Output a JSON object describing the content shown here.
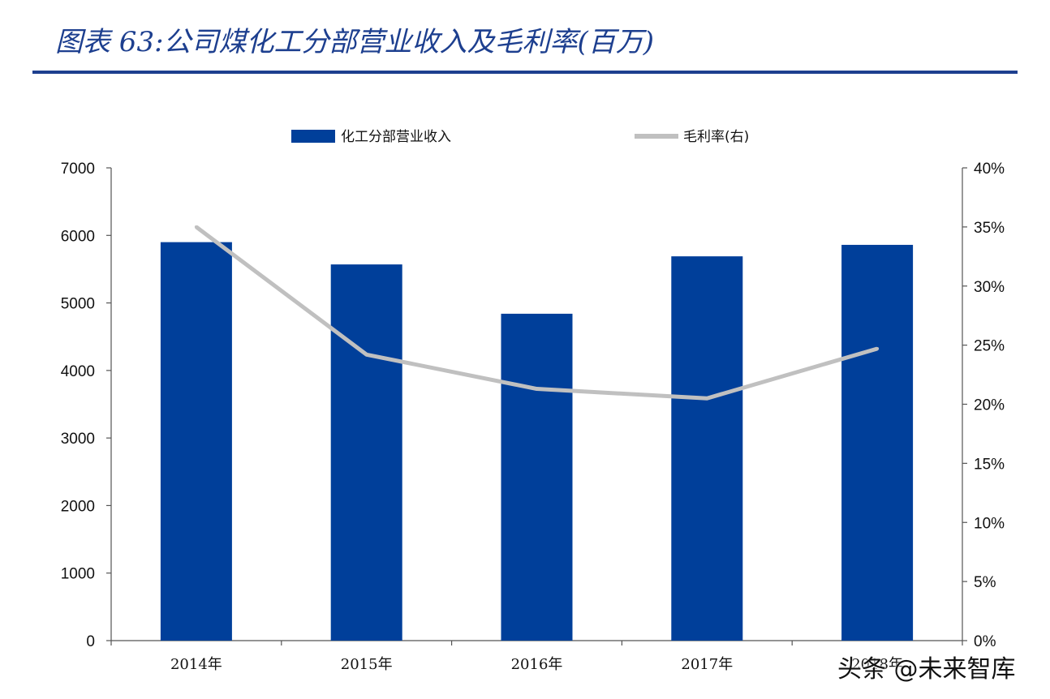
{
  "header": {
    "title": "图表 63:公司煤化工分部营业收入及毛利率(百万)"
  },
  "watermark": "头条 @未来智库",
  "colors": {
    "bar": "#003f9a",
    "line": "#c0c0c0",
    "title": "#1d3f8f"
  },
  "chart_data": {
    "type": "bar",
    "categories": [
      "2014年",
      "2015年",
      "2016年",
      "2017年",
      "2018年"
    ],
    "series": [
      {
        "name": "化工分部营业收入",
        "type": "bar",
        "axis": "left",
        "values": [
          5900,
          5570,
          4840,
          5690,
          5860
        ]
      },
      {
        "name": "毛利率(右)",
        "type": "line",
        "axis": "right",
        "values": [
          0.35,
          0.242,
          0.213,
          0.205,
          0.247
        ]
      }
    ],
    "y_left": {
      "ylim": [
        0,
        7000
      ],
      "ticks": [
        "0",
        "1000",
        "2000",
        "3000",
        "4000",
        "5000",
        "6000",
        "7000"
      ]
    },
    "y_right": {
      "ylim": [
        0,
        0.4
      ],
      "ticks": [
        "0%",
        "5%",
        "10%",
        "15%",
        "20%",
        "25%",
        "30%",
        "35%",
        "40%"
      ]
    },
    "legend_position": "top",
    "grid": false
  }
}
